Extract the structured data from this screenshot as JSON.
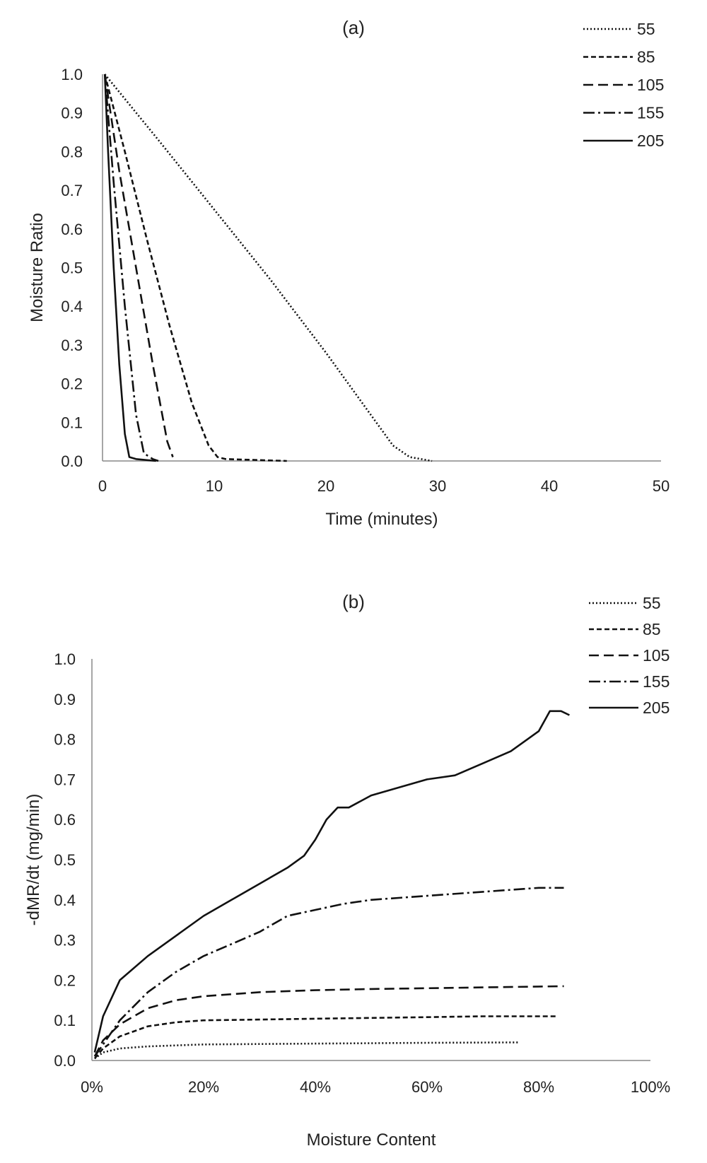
{
  "chart_data": [
    {
      "type": "line",
      "title": "(a)",
      "xlabel": "Time (minutes)",
      "ylabel": "Moisture Ratio",
      "xlim": [
        0,
        50
      ],
      "ylim": [
        0,
        1
      ],
      "xticks": [
        "0",
        "10",
        "20",
        "30",
        "40",
        "50"
      ],
      "yticks": [
        "0.0",
        "0.1",
        "0.2",
        "0.3",
        "0.4",
        "0.5",
        "0.6",
        "0.7",
        "0.8",
        "0.9",
        "1.0"
      ],
      "grid": false,
      "legend_position": "top-right",
      "series": [
        {
          "name": "55",
          "dash": "dotted",
          "x": [
            0.2,
            5,
            10,
            15,
            20,
            24,
            26,
            27.5,
            29.5
          ],
          "y": [
            1.0,
            0.83,
            0.65,
            0.47,
            0.28,
            0.12,
            0.04,
            0.01,
            0.0
          ]
        },
        {
          "name": "85",
          "dash": "short-dash",
          "x": [
            0.2,
            2,
            4,
            6,
            8,
            9.5,
            10.3,
            11,
            16.5
          ],
          "y": [
            1.0,
            0.8,
            0.57,
            0.35,
            0.15,
            0.04,
            0.01,
            0.005,
            0.0
          ]
        },
        {
          "name": "105",
          "dash": "long-dash",
          "x": [
            0.2,
            1.5,
            3,
            4.5,
            5.8,
            6.3
          ],
          "y": [
            1.0,
            0.75,
            0.5,
            0.25,
            0.05,
            0.01
          ]
        },
        {
          "name": "155",
          "dash": "dash-dot",
          "x": [
            0.2,
            1,
            2,
            3,
            3.7,
            4.5,
            5
          ],
          "y": [
            1.0,
            0.72,
            0.4,
            0.12,
            0.02,
            0.005,
            0.0
          ]
        },
        {
          "name": "205",
          "dash": "solid",
          "x": [
            0.2,
            0.5,
            1,
            1.5,
            2,
            2.4,
            3,
            4.8
          ],
          "y": [
            1.0,
            0.8,
            0.5,
            0.25,
            0.07,
            0.01,
            0.005,
            0.0
          ]
        }
      ]
    },
    {
      "type": "line",
      "title": "(b)",
      "xlabel": "Moisture Content",
      "ylabel": "-dMR/dt (mg/min)",
      "xlim": [
        0,
        100
      ],
      "ylim": [
        0,
        1
      ],
      "xticks": [
        "0%",
        "20%",
        "40%",
        "60%",
        "80%",
        "100%"
      ],
      "yticks": [
        "0.0",
        "0.1",
        "0.2",
        "0.3",
        "0.4",
        "0.5",
        "0.6",
        "0.7",
        "0.8",
        "0.9",
        "1.0"
      ],
      "grid": false,
      "legend_position": "top-right",
      "series": [
        {
          "name": "55",
          "dash": "dotted",
          "x": [
            0.5,
            2,
            5,
            10,
            20,
            40,
            60,
            76.5
          ],
          "y": [
            0.005,
            0.02,
            0.03,
            0.035,
            0.04,
            0.042,
            0.044,
            0.045
          ]
        },
        {
          "name": "85",
          "dash": "short-dash",
          "x": [
            0.5,
            2,
            5,
            10,
            15,
            20,
            30,
            40,
            50,
            60,
            70,
            83.5
          ],
          "y": [
            0.005,
            0.03,
            0.06,
            0.085,
            0.095,
            0.1,
            0.102,
            0.104,
            0.106,
            0.108,
            0.11,
            0.11
          ]
        },
        {
          "name": "105",
          "dash": "long-dash",
          "x": [
            0.5,
            2,
            5,
            10,
            15,
            20,
            30,
            40,
            50,
            60,
            70,
            84.5
          ],
          "y": [
            0.01,
            0.05,
            0.09,
            0.13,
            0.15,
            0.16,
            0.17,
            0.175,
            0.178,
            0.18,
            0.182,
            0.185
          ]
        },
        {
          "name": "155",
          "dash": "dash-dot",
          "x": [
            0.5,
            2,
            5,
            10,
            15,
            20,
            25,
            30,
            35,
            40,
            45,
            50,
            60,
            70,
            80,
            84.5
          ],
          "y": [
            0.01,
            0.04,
            0.1,
            0.17,
            0.22,
            0.26,
            0.29,
            0.32,
            0.36,
            0.375,
            0.39,
            0.4,
            0.41,
            0.42,
            0.43,
            0.43
          ]
        },
        {
          "name": "205",
          "dash": "solid",
          "x": [
            0.5,
            2,
            5,
            10,
            15,
            20,
            25,
            30,
            35,
            38,
            40,
            42,
            44,
            46,
            50,
            55,
            60,
            65,
            70,
            75,
            78,
            80,
            82,
            84,
            85.5
          ],
          "y": [
            0.02,
            0.11,
            0.2,
            0.26,
            0.31,
            0.36,
            0.4,
            0.44,
            0.48,
            0.51,
            0.55,
            0.6,
            0.63,
            0.63,
            0.66,
            0.68,
            0.7,
            0.71,
            0.74,
            0.77,
            0.8,
            0.82,
            0.87,
            0.87,
            0.86
          ]
        }
      ]
    }
  ]
}
